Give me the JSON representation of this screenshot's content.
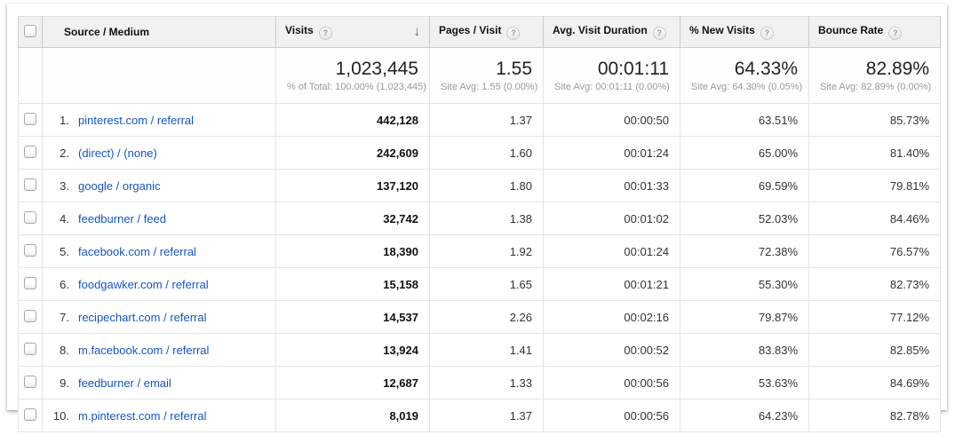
{
  "icons": {
    "help": "?",
    "sort_desc": "↓"
  },
  "colors": {
    "link_blue": "#1155cc",
    "header_bg": "#f1f1f1",
    "border_gray": "#e5e5e5",
    "value_text": "#222222",
    "subtext_gray": "#999999"
  },
  "table": {
    "columns": [
      {
        "label": "Source / Medium",
        "help": false
      },
      {
        "label": "Visits",
        "help": true,
        "sorted": "descending"
      },
      {
        "label": "Pages / Visit",
        "help": true
      },
      {
        "label": "Avg. Visit Duration",
        "help": true
      },
      {
        "label": "% New Visits",
        "help": true
      },
      {
        "label": "Bounce Rate",
        "help": true
      }
    ],
    "summary": {
      "visits": {
        "value": "1,023,445",
        "sub": "% of Total: 100.00% (1,023,445)"
      },
      "pages": {
        "value": "1.55",
        "sub": "Site Avg: 1.55 (0.00%)"
      },
      "duration": {
        "value": "00:01:11",
        "sub": "Site Avg: 00:01:11 (0.00%)"
      },
      "new_visits": {
        "value": "64.33%",
        "sub": "Site Avg: 64.30% (0.05%)"
      },
      "bounce": {
        "value": "82.89%",
        "sub": "Site Avg: 82.89% (0.00%)"
      }
    },
    "rows": [
      {
        "rank": "1.",
        "source": "pinterest.com / referral",
        "visits": "442,128",
        "pages": "1.37",
        "duration": "00:00:50",
        "new_visits": "63.51%",
        "bounce": "85.73%"
      },
      {
        "rank": "2.",
        "source": "(direct) / (none)",
        "visits": "242,609",
        "pages": "1.60",
        "duration": "00:01:24",
        "new_visits": "65.00%",
        "bounce": "81.40%"
      },
      {
        "rank": "3.",
        "source": "google / organic",
        "visits": "137,120",
        "pages": "1.80",
        "duration": "00:01:33",
        "new_visits": "69.59%",
        "bounce": "79.81%"
      },
      {
        "rank": "4.",
        "source": "feedburner / feed",
        "visits": "32,742",
        "pages": "1.38",
        "duration": "00:01:02",
        "new_visits": "52.03%",
        "bounce": "84.46%"
      },
      {
        "rank": "5.",
        "source": "facebook.com / referral",
        "visits": "18,390",
        "pages": "1.92",
        "duration": "00:01:24",
        "new_visits": "72.38%",
        "bounce": "76.57%"
      },
      {
        "rank": "6.",
        "source": "foodgawker.com / referral",
        "visits": "15,158",
        "pages": "1.65",
        "duration": "00:01:21",
        "new_visits": "55.30%",
        "bounce": "82.73%"
      },
      {
        "rank": "7.",
        "source": "recipechart.com / referral",
        "visits": "14,537",
        "pages": "2.26",
        "duration": "00:02:16",
        "new_visits": "79.87%",
        "bounce": "77.12%"
      },
      {
        "rank": "8.",
        "source": "m.facebook.com / referral",
        "visits": "13,924",
        "pages": "1.41",
        "duration": "00:00:52",
        "new_visits": "83.83%",
        "bounce": "82.85%"
      },
      {
        "rank": "9.",
        "source": "feedburner / email",
        "visits": "12,687",
        "pages": "1.33",
        "duration": "00:00:56",
        "new_visits": "53.63%",
        "bounce": "84.69%"
      },
      {
        "rank": "10.",
        "source": "m.pinterest.com / referral",
        "visits": "8,019",
        "pages": "1.37",
        "duration": "00:00:56",
        "new_visits": "64.23%",
        "bounce": "82.78%"
      }
    ]
  }
}
